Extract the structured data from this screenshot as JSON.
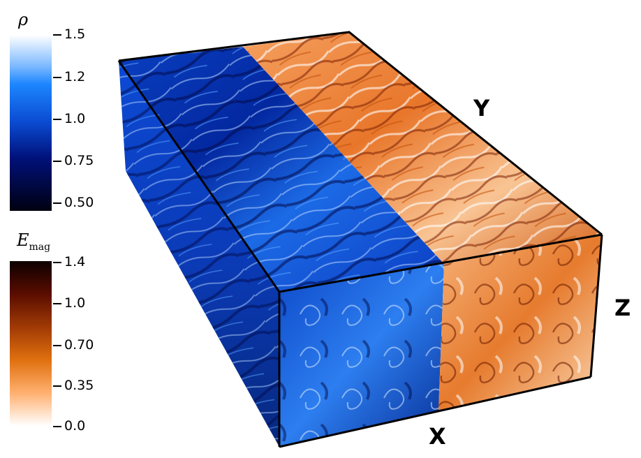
{
  "colorbar_density": {
    "title": "ρ",
    "ticks": [
      "1.5",
      "1.2",
      "1.0",
      "0.75",
      "0.50"
    ],
    "colors": [
      "#ffffff",
      "#1d86ff",
      "#0a4ad0",
      "#00117a",
      "#000010"
    ]
  },
  "colorbar_emag": {
    "title_main": "E",
    "title_sub": "mag",
    "ticks": [
      "1.4",
      "1.0",
      "0.70",
      "0.35",
      "0.0"
    ],
    "colors": [
      "#0d0000",
      "#7a1a00",
      "#c25a0a",
      "#ff8a1a",
      "#ffffff"
    ]
  },
  "axes": {
    "x": "X",
    "y": "Y",
    "z": "Z"
  },
  "faces": {
    "blue": "#0b44c8",
    "blue_dark": "#02136e",
    "blue_light": "#2f8bff",
    "orange": "#f0923a",
    "orange_dark": "#8c2a05",
    "orange_light": "#fde2c8"
  }
}
